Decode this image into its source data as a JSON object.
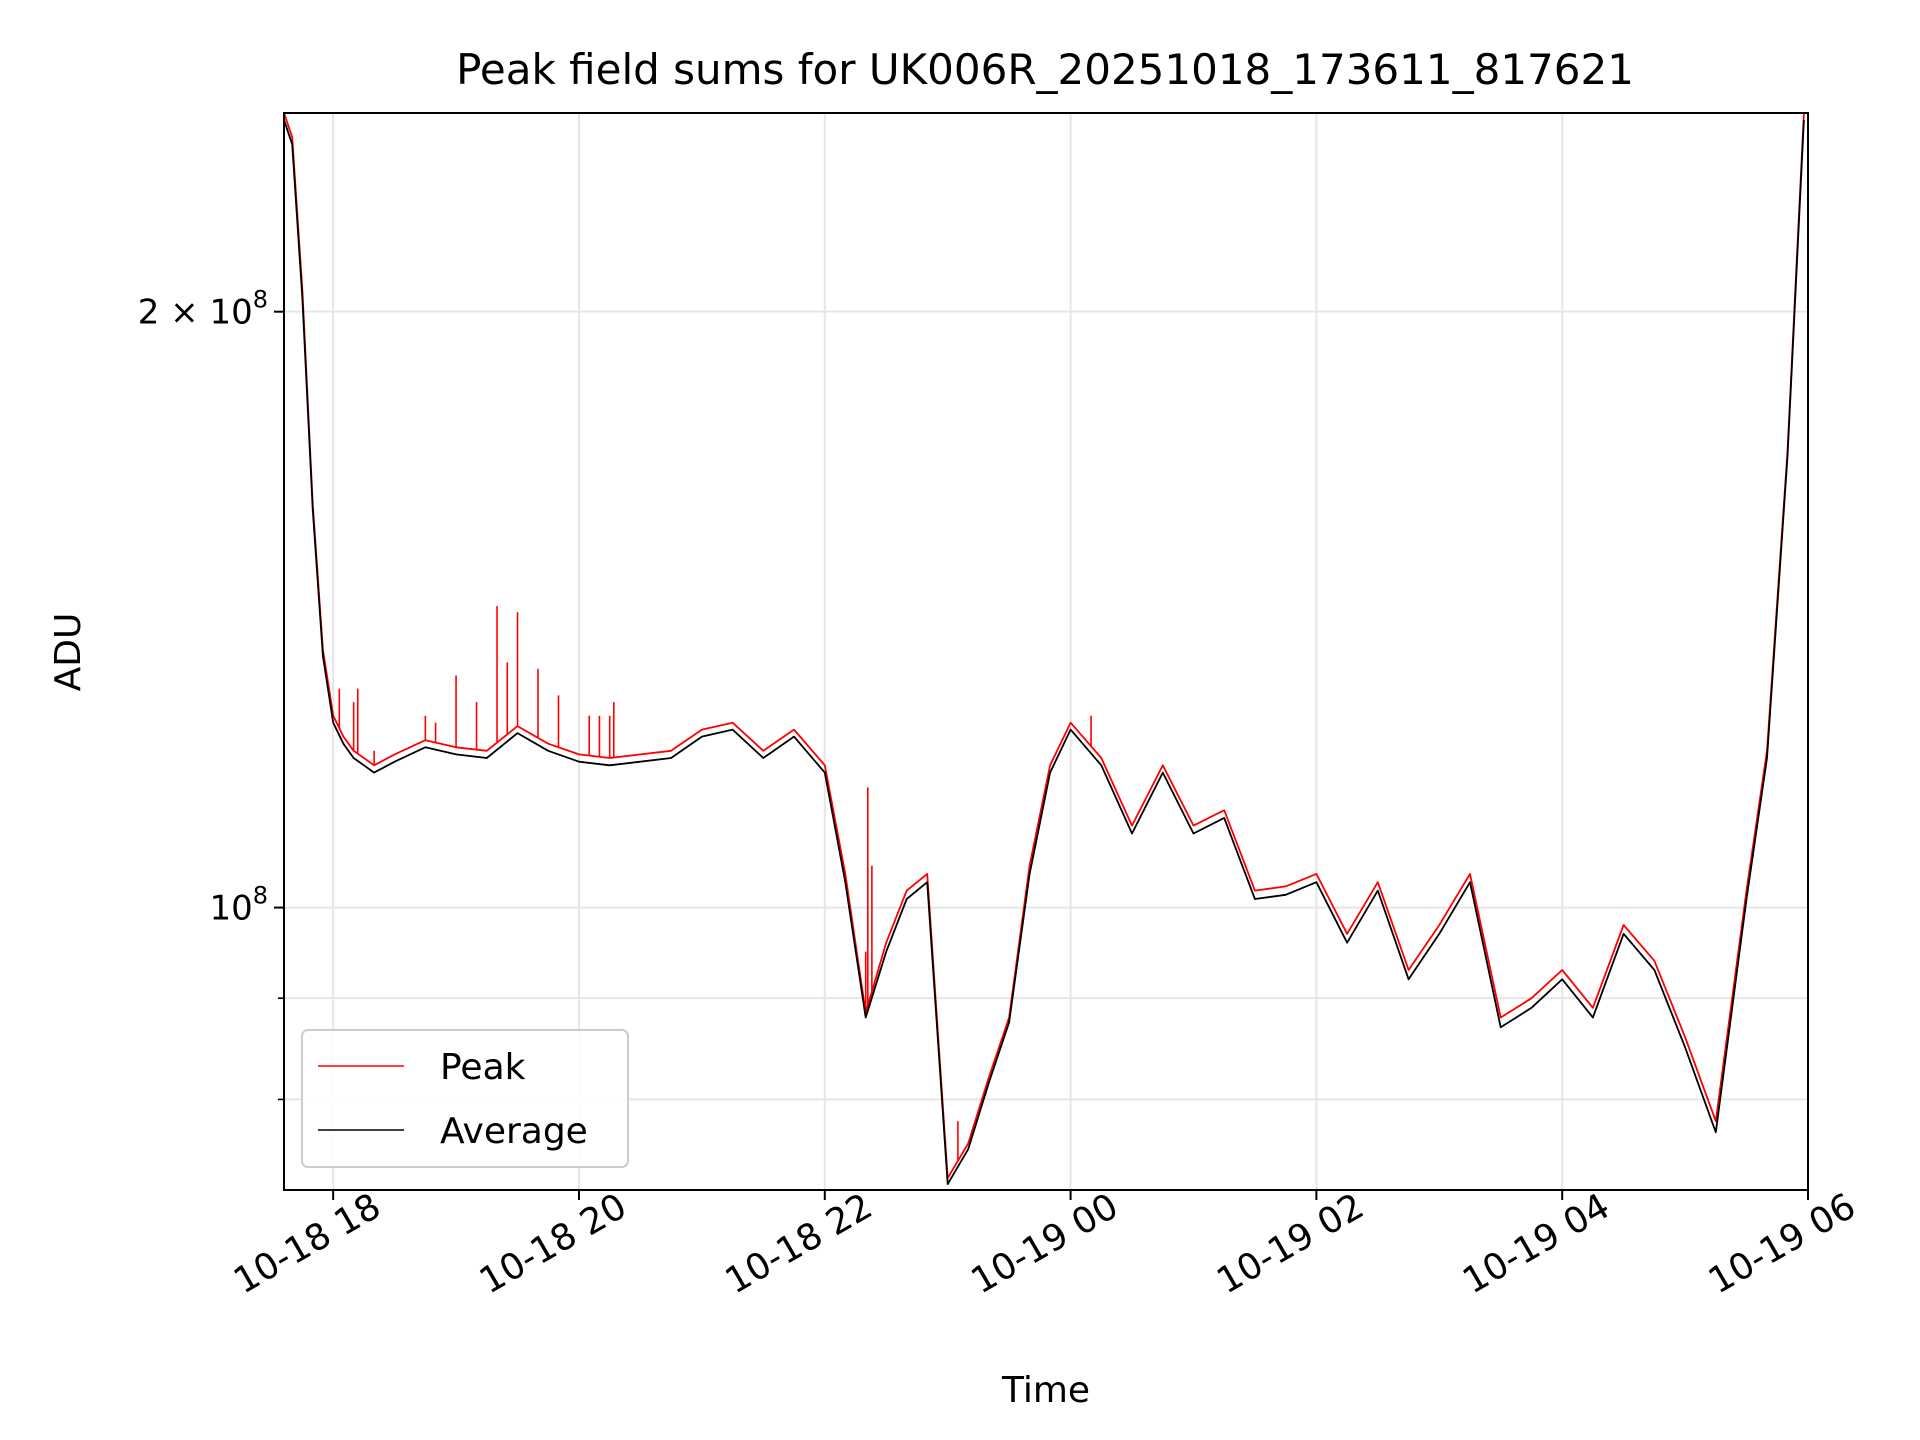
{
  "chart_data": {
    "type": "line",
    "title": "Peak field sums for UK006R_20251018_173611_817621",
    "xlabel": "Time",
    "ylabel": "ADU",
    "yscale": "log",
    "grid": true,
    "legend_position": "lower-left",
    "xlim": [
      "2025-10-18 17:36",
      "2025-10-19 06:00"
    ],
    "ylim": [
      72000000,
      252000000
    ],
    "x_ticks": [
      {
        "value": "2025-10-18 18:00",
        "label": "10-18 18"
      },
      {
        "value": "2025-10-18 20:00",
        "label": "10-18 20"
      },
      {
        "value": "2025-10-18 22:00",
        "label": "10-18 22"
      },
      {
        "value": "2025-10-19 00:00",
        "label": "10-19 00"
      },
      {
        "value": "2025-10-19 02:00",
        "label": "10-19 02"
      },
      {
        "value": "2025-10-19 04:00",
        "label": "10-19 04"
      },
      {
        "value": "2025-10-19 06:00",
        "label": "10-19 06"
      }
    ],
    "y_major_ticks": [
      {
        "value": 100000000,
        "base": "10",
        "exp": "8",
        "label": "10^8"
      },
      {
        "value": 200000000,
        "mantissa": "2 × ",
        "base": "10",
        "exp": "8",
        "label": "2 × 10^8"
      }
    ],
    "y_minor_ticks": [
      80000000,
      90000000
    ],
    "series": [
      {
        "name": "Peak",
        "color": "#ff0000",
        "x": [
          "2025-10-18 17:36",
          "2025-10-18 17:40",
          "2025-10-18 17:45",
          "2025-10-18 17:50",
          "2025-10-18 17:55",
          "2025-10-18 18:00",
          "2025-10-18 18:05",
          "2025-10-18 18:10",
          "2025-10-18 18:15",
          "2025-10-18 18:20",
          "2025-10-18 18:30",
          "2025-10-18 18:45",
          "2025-10-18 19:00",
          "2025-10-18 19:15",
          "2025-10-18 19:30",
          "2025-10-18 19:45",
          "2025-10-18 20:00",
          "2025-10-18 20:15",
          "2025-10-18 20:30",
          "2025-10-18 20:45",
          "2025-10-18 21:00",
          "2025-10-18 21:15",
          "2025-10-18 21:30",
          "2025-10-18 21:45",
          "2025-10-18 22:00",
          "2025-10-18 22:10",
          "2025-10-18 22:20",
          "2025-10-18 22:30",
          "2025-10-18 22:40",
          "2025-10-18 22:50",
          "2025-10-18 23:00",
          "2025-10-18 23:10",
          "2025-10-18 23:20",
          "2025-10-18 23:30",
          "2025-10-18 23:40",
          "2025-10-18 23:50",
          "2025-10-19 00:00",
          "2025-10-19 00:15",
          "2025-10-19 00:30",
          "2025-10-19 00:45",
          "2025-10-19 01:00",
          "2025-10-19 01:15",
          "2025-10-19 01:30",
          "2025-10-19 01:45",
          "2025-10-19 02:00",
          "2025-10-19 02:15",
          "2025-10-19 02:30",
          "2025-10-19 02:45",
          "2025-10-19 03:00",
          "2025-10-19 03:15",
          "2025-10-19 03:30",
          "2025-10-19 03:45",
          "2025-10-19 04:00",
          "2025-10-19 04:15",
          "2025-10-19 04:30",
          "2025-10-19 04:45",
          "2025-10-19 05:00",
          "2025-10-19 05:15",
          "2025-10-19 05:30",
          "2025-10-19 05:40",
          "2025-10-19 05:50",
          "2025-10-19 05:58"
        ],
        "y": [
          252000000,
          245000000,
          205000000,
          160000000,
          135000000,
          125000000,
          122000000,
          120000000,
          119000000,
          118000000,
          119500000,
          121500000,
          120500000,
          120000000,
          123500000,
          121000000,
          119500000,
          119000000,
          119500000,
          120000000,
          123000000,
          124000000,
          120000000,
          123000000,
          118000000,
          104000000,
          88500000,
          96000000,
          102000000,
          104000000,
          73000000,
          76000000,
          82000000,
          88000000,
          105000000,
          118000000,
          124000000,
          119000000,
          110000000,
          118000000,
          110000000,
          112000000,
          102000000,
          102500000,
          104000000,
          97000000,
          103000000,
          93000000,
          98000000,
          104000000,
          88000000,
          90000000,
          93000000,
          89000000,
          98000000,
          94000000,
          86000000,
          78000000,
          102000000,
          120000000,
          170000000,
          252000000
        ],
        "spikes": [
          {
            "x": "2025-10-18 18:03",
            "y": 129000000
          },
          {
            "x": "2025-10-18 18:10",
            "y": 127000000
          },
          {
            "x": "2025-10-18 18:12",
            "y": 129000000
          },
          {
            "x": "2025-10-18 18:20",
            "y": 120000000
          },
          {
            "x": "2025-10-18 18:45",
            "y": 125000000
          },
          {
            "x": "2025-10-18 18:50",
            "y": 124000000
          },
          {
            "x": "2025-10-18 19:00",
            "y": 131000000
          },
          {
            "x": "2025-10-18 19:10",
            "y": 127000000
          },
          {
            "x": "2025-10-18 19:20",
            "y": 142000000
          },
          {
            "x": "2025-10-18 19:25",
            "y": 133000000
          },
          {
            "x": "2025-10-18 19:30",
            "y": 141000000
          },
          {
            "x": "2025-10-18 19:40",
            "y": 132000000
          },
          {
            "x": "2025-10-18 19:50",
            "y": 128000000
          },
          {
            "x": "2025-10-18 20:05",
            "y": 125000000
          },
          {
            "x": "2025-10-18 20:10",
            "y": 125000000
          },
          {
            "x": "2025-10-18 20:15",
            "y": 125000000
          },
          {
            "x": "2025-10-18 20:17",
            "y": 127000000
          },
          {
            "x": "2025-10-18 22:20",
            "y": 95000000
          },
          {
            "x": "2025-10-18 22:21",
            "y": 115000000
          },
          {
            "x": "2025-10-18 22:23",
            "y": 105000000
          },
          {
            "x": "2025-10-18 23:05",
            "y": 78000000
          },
          {
            "x": "2025-10-19 00:10",
            "y": 125000000
          }
        ]
      },
      {
        "name": "Average",
        "color": "#000000",
        "x": [
          "2025-10-18 17:36",
          "2025-10-18 17:40",
          "2025-10-18 17:45",
          "2025-10-18 17:50",
          "2025-10-18 17:55",
          "2025-10-18 18:00",
          "2025-10-18 18:05",
          "2025-10-18 18:10",
          "2025-10-18 18:15",
          "2025-10-18 18:20",
          "2025-10-18 18:30",
          "2025-10-18 18:45",
          "2025-10-18 19:00",
          "2025-10-18 19:15",
          "2025-10-18 19:30",
          "2025-10-18 19:45",
          "2025-10-18 20:00",
          "2025-10-18 20:15",
          "2025-10-18 20:30",
          "2025-10-18 20:45",
          "2025-10-18 21:00",
          "2025-10-18 21:15",
          "2025-10-18 21:30",
          "2025-10-18 21:45",
          "2025-10-18 22:00",
          "2025-10-18 22:10",
          "2025-10-18 22:20",
          "2025-10-18 22:30",
          "2025-10-18 22:40",
          "2025-10-18 22:50",
          "2025-10-18 23:00",
          "2025-10-18 23:10",
          "2025-10-18 23:20",
          "2025-10-18 23:30",
          "2025-10-18 23:40",
          "2025-10-18 23:50",
          "2025-10-19 00:00",
          "2025-10-19 00:15",
          "2025-10-19 00:30",
          "2025-10-19 00:45",
          "2025-10-19 01:00",
          "2025-10-19 01:15",
          "2025-10-19 01:30",
          "2025-10-19 01:45",
          "2025-10-19 02:00",
          "2025-10-19 02:15",
          "2025-10-19 02:30",
          "2025-10-19 02:45",
          "2025-10-19 03:00",
          "2025-10-19 03:15",
          "2025-10-19 03:30",
          "2025-10-19 03:45",
          "2025-10-19 04:00",
          "2025-10-19 04:15",
          "2025-10-19 04:30",
          "2025-10-19 04:45",
          "2025-10-19 05:00",
          "2025-10-19 05:15",
          "2025-10-19 05:30",
          "2025-10-19 05:40",
          "2025-10-19 05:50",
          "2025-10-19 05:58"
        ],
        "y": [
          250000000,
          243000000,
          203000000,
          159000000,
          134000000,
          124000000,
          121000000,
          119000000,
          118000000,
          117000000,
          118500000,
          120500000,
          119500000,
          119000000,
          122500000,
          120000000,
          118500000,
          118000000,
          118500000,
          119000000,
          122000000,
          123000000,
          119000000,
          122000000,
          117000000,
          103000000,
          88000000,
          95000000,
          101000000,
          103000000,
          72500000,
          75500000,
          81500000,
          87500000,
          104000000,
          117000000,
          123000000,
          118000000,
          109000000,
          117000000,
          109000000,
          111000000,
          101000000,
          101500000,
          103000000,
          96000000,
          102000000,
          92000000,
          97000000,
          103000000,
          87000000,
          89000000,
          92000000,
          88000000,
          97000000,
          93000000,
          85000000,
          77000000,
          101000000,
          119000000,
          169000000,
          250000000
        ]
      }
    ]
  }
}
